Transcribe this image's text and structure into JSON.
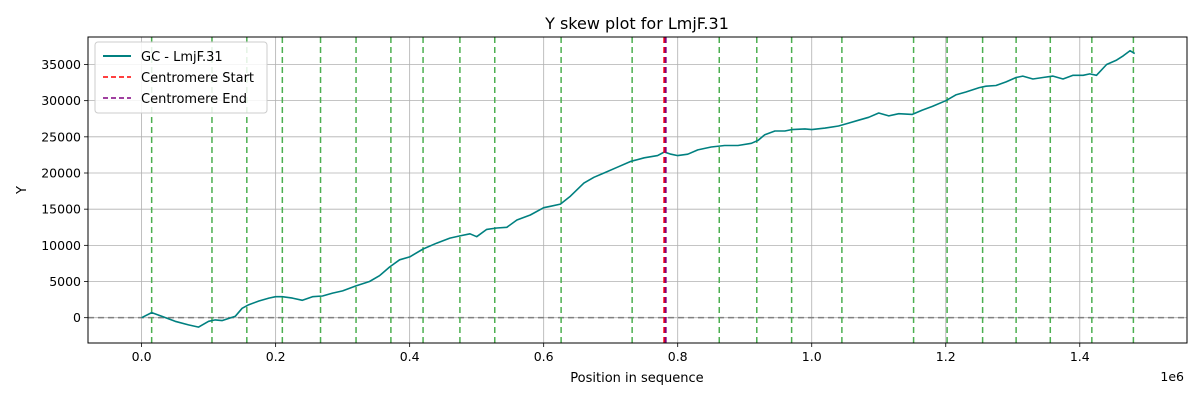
{
  "chart_data": {
    "type": "line",
    "title": "Y skew plot for LmjF.31",
    "xlabel": "Position in sequence",
    "ylabel": "Y",
    "x_offset_text": "1e6",
    "xlim": [
      -80000,
      1560000
    ],
    "ylim": [
      -3500,
      38800
    ],
    "grid": true,
    "legend_placement": "top-left",
    "x_ticks": [
      0,
      200000,
      400000,
      600000,
      800000,
      1000000,
      1200000,
      1400000
    ],
    "x_tick_labels": [
      "0.0",
      "0.2",
      "0.4",
      "0.6",
      "0.8",
      "1.0",
      "1.2",
      "1.4"
    ],
    "y_ticks": [
      0,
      5000,
      10000,
      15000,
      20000,
      25000,
      30000,
      35000
    ],
    "y_tick_labels": [
      "0",
      "5000",
      "10000",
      "15000",
      "20000",
      "25000",
      "30000",
      "35000"
    ],
    "zero_line": 0,
    "series": [
      {
        "name": "GC - LmjF.31",
        "color": "#008080",
        "x": [
          0,
          15000,
          30000,
          50000,
          70000,
          85000,
          100000,
          110000,
          120000,
          140000,
          150000,
          160000,
          175000,
          190000,
          200000,
          210000,
          225000,
          240000,
          255000,
          270000,
          285000,
          300000,
          320000,
          340000,
          355000,
          370000,
          385000,
          400000,
          420000,
          440000,
          460000,
          475000,
          490000,
          500000,
          515000,
          530000,
          545000,
          560000,
          580000,
          600000,
          610000,
          625000,
          640000,
          660000,
          675000,
          690000,
          710000,
          730000,
          750000,
          770000,
          780000,
          790000,
          800000,
          815000,
          830000,
          850000,
          870000,
          890000,
          910000,
          920000,
          930000,
          945000,
          960000,
          970000,
          990000,
          1000000,
          1020000,
          1040000,
          1055000,
          1070000,
          1085000,
          1100000,
          1115000,
          1130000,
          1150000,
          1165000,
          1180000,
          1200000,
          1215000,
          1230000,
          1250000,
          1260000,
          1275000,
          1290000,
          1305000,
          1315000,
          1330000,
          1345000,
          1360000,
          1375000,
          1390000,
          1405000,
          1415000,
          1425000,
          1440000,
          1455000,
          1465000,
          1475000,
          1482000
        ],
        "y": [
          0,
          700,
          200,
          -500,
          -1000,
          -1300,
          -500,
          -300,
          -400,
          200,
          1300,
          1800,
          2300,
          2700,
          2900,
          2900,
          2700,
          2400,
          2900,
          3000,
          3400,
          3700,
          4400,
          5000,
          5800,
          7000,
          8000,
          8400,
          9500,
          10300,
          11000,
          11300,
          11600,
          11200,
          12200,
          12400,
          12500,
          13500,
          14200,
          15200,
          15400,
          15700,
          16800,
          18600,
          19400,
          20000,
          20800,
          21600,
          22100,
          22400,
          22900,
          22600,
          22400,
          22600,
          23200,
          23600,
          23800,
          23800,
          24100,
          24500,
          25300,
          25800,
          25800,
          26000,
          26100,
          26000,
          26200,
          26500,
          26900,
          27300,
          27700,
          28300,
          27900,
          28200,
          28100,
          28700,
          29200,
          30000,
          30800,
          31200,
          31800,
          32000,
          32100,
          32600,
          33200,
          33400,
          33000,
          33200,
          33400,
          33000,
          33500,
          33500,
          33700,
          33500,
          35000,
          35600,
          36200,
          36900,
          36500
        ]
      },
      {
        "name": "Centromere Start",
        "color": "#ff0000",
        "x": [
          780000,
          780000
        ],
        "y": [
          -3500,
          38800
        ]
      },
      {
        "name": "Centromere End",
        "color": "#800080",
        "x": [
          782000,
          782000
        ],
        "y": [
          -3500,
          38800
        ]
      }
    ],
    "vertical_markers": [
      15000,
      105000,
      157000,
      210000,
      267000,
      320000,
      372000,
      420000,
      475000,
      527000,
      626000,
      732000,
      782000,
      862000,
      918000,
      970000,
      1045000,
      1152000,
      1202000,
      1255000,
      1305000,
      1356000,
      1418000,
      1480000
    ],
    "marker_color": "#4caf50",
    "zero_line_color": "#808080"
  }
}
